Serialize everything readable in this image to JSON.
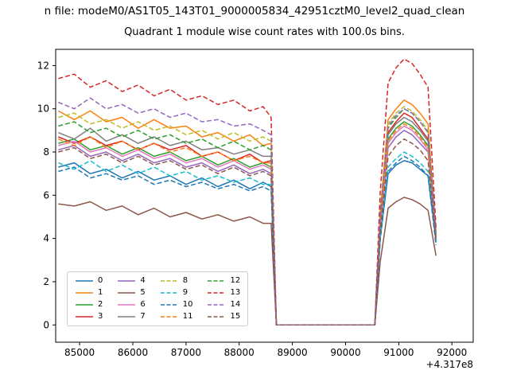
{
  "header": {
    "title_line1": "n file: modeM0/AS1T05_143T01_9000005834_42951cztM0_level2_quad_clean",
    "title_line2": "Quadrant 1 module wise count rates with 100.0s bins."
  },
  "chart_data": {
    "type": "line",
    "title": "Quadrant 1 module wise count rates with 100.0s bins.",
    "xlabel": "",
    "ylabel": "",
    "x_offset_label": "+4.317e8",
    "xlim": [
      84550,
      92400
    ],
    "ylim": [
      -0.8,
      12.75
    ],
    "xticks": [
      85000,
      86000,
      87000,
      88000,
      89000,
      90000,
      91000,
      92000
    ],
    "yticks": [
      0,
      2,
      4,
      6,
      8,
      10,
      12
    ],
    "grid": false,
    "legend_position": "lower left",
    "legend_column_major_order": [
      0,
      4,
      8,
      12,
      1,
      5,
      9,
      13,
      2,
      6,
      10,
      14,
      3,
      7,
      11,
      15
    ],
    "x": [
      84600,
      84900,
      85200,
      85500,
      85800,
      86100,
      86400,
      86700,
      87000,
      87300,
      87600,
      87900,
      88200,
      88450,
      88600,
      88700,
      89000,
      89600,
      90200,
      90550,
      90650,
      90800,
      90950,
      91100,
      91250,
      91400,
      91550,
      91700
    ],
    "series": [
      {
        "name": "0",
        "color": "#1f77b4",
        "dashed": false,
        "values": [
          7.3,
          7.5,
          7.0,
          7.2,
          6.8,
          7.1,
          6.7,
          6.9,
          6.5,
          6.8,
          6.4,
          6.7,
          6.3,
          6.6,
          6.4,
          0,
          0,
          0,
          0,
          0,
          4.0,
          7.0,
          7.4,
          7.6,
          7.5,
          7.2,
          6.9,
          3.9
        ]
      },
      {
        "name": "1",
        "color": "#ff7f0e",
        "dashed": false,
        "values": [
          9.9,
          9.5,
          9.9,
          9.4,
          9.6,
          9.1,
          9.5,
          9.1,
          9.2,
          8.7,
          8.9,
          8.5,
          8.8,
          8.3,
          8.4,
          0,
          0,
          0,
          0,
          0,
          5.2,
          9.5,
          10.0,
          10.4,
          10.2,
          9.8,
          9.3,
          4.1
        ]
      },
      {
        "name": "2",
        "color": "#2ca02c",
        "dashed": false,
        "values": [
          8.4,
          8.6,
          8.1,
          8.3,
          7.9,
          8.2,
          7.8,
          8.0,
          7.6,
          7.8,
          7.4,
          7.7,
          7.3,
          7.5,
          7.3,
          0,
          0,
          0,
          0,
          0,
          4.6,
          8.6,
          9.1,
          9.4,
          9.2,
          8.8,
          8.3,
          4.0
        ]
      },
      {
        "name": "3",
        "color": "#d62728",
        "dashed": false,
        "values": [
          8.7,
          8.4,
          8.7,
          8.3,
          8.5,
          8.1,
          8.4,
          8.1,
          8.3,
          7.8,
          8.0,
          7.6,
          7.9,
          7.5,
          7.6,
          0,
          0,
          0,
          0,
          0,
          4.8,
          8.9,
          9.4,
          9.8,
          9.6,
          9.1,
          8.6,
          4.2
        ]
      },
      {
        "name": "4",
        "color": "#9467bd",
        "dashed": false,
        "values": [
          8.1,
          8.3,
          7.8,
          8.0,
          7.6,
          7.9,
          7.5,
          7.7,
          7.3,
          7.5,
          7.1,
          7.4,
          7.0,
          7.2,
          7.0,
          0,
          0,
          0,
          0,
          0,
          4.4,
          8.2,
          8.7,
          9.0,
          8.8,
          8.4,
          8.0,
          3.9
        ]
      },
      {
        "name": "5",
        "color": "#8c564b",
        "dashed": false,
        "values": [
          5.6,
          5.5,
          5.7,
          5.3,
          5.5,
          5.1,
          5.4,
          5.0,
          5.2,
          4.9,
          5.1,
          4.8,
          5.0,
          4.7,
          4.7,
          0,
          0,
          0,
          0,
          0,
          2.9,
          5.4,
          5.7,
          5.9,
          5.8,
          5.6,
          5.3,
          3.2
        ]
      },
      {
        "name": "6",
        "color": "#e377c2",
        "dashed": false,
        "values": [
          8.3,
          8.5,
          8.0,
          8.2,
          7.8,
          8.1,
          7.7,
          7.9,
          7.5,
          7.7,
          7.3,
          7.6,
          7.2,
          7.4,
          7.2,
          0,
          0,
          0,
          0,
          0,
          4.5,
          8.4,
          8.9,
          9.2,
          9.0,
          8.6,
          8.1,
          4.0
        ]
      },
      {
        "name": "7",
        "color": "#7f7f7f",
        "dashed": false,
        "values": [
          8.9,
          8.6,
          9.1,
          8.5,
          8.8,
          8.4,
          8.7,
          8.3,
          8.5,
          8.1,
          8.2,
          7.9,
          8.1,
          7.8,
          7.8,
          0,
          0,
          0,
          0,
          0,
          4.9,
          8.8,
          9.3,
          9.6,
          9.4,
          9.0,
          8.5,
          4.1
        ]
      },
      {
        "name": "8",
        "color": "#bcbd22",
        "dashed": true,
        "values": [
          9.6,
          9.8,
          9.3,
          9.5,
          9.1,
          9.4,
          9.0,
          9.2,
          8.8,
          9.0,
          8.6,
          8.9,
          8.5,
          8.7,
          8.5,
          0,
          0,
          0,
          0,
          0,
          5.1,
          9.3,
          9.8,
          10.1,
          9.9,
          9.5,
          9.0,
          4.3
        ]
      },
      {
        "name": "9",
        "color": "#17becf",
        "dashed": true,
        "values": [
          7.5,
          7.2,
          7.6,
          7.1,
          7.4,
          7.0,
          7.3,
          6.9,
          7.1,
          6.7,
          6.9,
          6.6,
          6.8,
          6.5,
          6.5,
          0,
          0,
          0,
          0,
          0,
          4.0,
          7.3,
          7.7,
          8.0,
          7.8,
          7.5,
          7.1,
          3.8
        ]
      },
      {
        "name": "10",
        "color": "#1f77b4",
        "dashed": true,
        "values": [
          7.1,
          7.3,
          6.8,
          7.0,
          6.7,
          6.9,
          6.5,
          6.7,
          6.4,
          6.6,
          6.3,
          6.5,
          6.2,
          6.4,
          6.2,
          0,
          0,
          0,
          0,
          0,
          3.9,
          7.1,
          7.5,
          7.8,
          7.6,
          7.3,
          6.9,
          3.7
        ]
      },
      {
        "name": "11",
        "color": "#ff7f0e",
        "dashed": true,
        "values": [
          8.6,
          8.3,
          8.7,
          8.2,
          8.5,
          8.1,
          8.4,
          8.0,
          8.2,
          7.8,
          8.0,
          7.6,
          7.8,
          7.5,
          7.5,
          0,
          0,
          0,
          0,
          0,
          4.7,
          8.5,
          9.0,
          9.3,
          9.1,
          8.7,
          8.2,
          4.0
        ]
      },
      {
        "name": "12",
        "color": "#2ca02c",
        "dashed": true,
        "values": [
          9.2,
          9.4,
          8.9,
          9.1,
          8.7,
          9.0,
          8.6,
          8.8,
          8.4,
          8.6,
          8.2,
          8.5,
          8.1,
          8.3,
          8.1,
          0,
          0,
          0,
          0,
          0,
          5.0,
          9.1,
          9.6,
          10.0,
          9.8,
          9.4,
          8.9,
          4.2
        ]
      },
      {
        "name": "13",
        "color": "#d62728",
        "dashed": true,
        "values": [
          11.4,
          11.6,
          11.0,
          11.3,
          10.8,
          11.1,
          10.6,
          10.9,
          10.4,
          10.6,
          10.2,
          10.4,
          9.9,
          10.1,
          9.6,
          0,
          0,
          0,
          0,
          0,
          6.1,
          11.2,
          11.9,
          12.3,
          12.1,
          11.6,
          11.0,
          4.5
        ]
      },
      {
        "name": "14",
        "color": "#9467bd",
        "dashed": true,
        "values": [
          10.3,
          10.0,
          10.5,
          10.0,
          10.2,
          9.8,
          10.0,
          9.6,
          9.8,
          9.4,
          9.5,
          9.2,
          9.3,
          9.0,
          8.8,
          0,
          0,
          0,
          0,
          0,
          5.0,
          9.2,
          9.7,
          10.0,
          9.8,
          9.4,
          8.9,
          4.2
        ]
      },
      {
        "name": "15",
        "color": "#8c564b",
        "dashed": true,
        "values": [
          8.0,
          8.2,
          7.7,
          7.9,
          7.5,
          7.8,
          7.4,
          7.6,
          7.2,
          7.4,
          7.0,
          7.3,
          6.9,
          7.1,
          6.9,
          0,
          0,
          0,
          0,
          0,
          4.3,
          7.8,
          8.3,
          8.6,
          8.4,
          8.1,
          7.6,
          3.9
        ]
      }
    ]
  }
}
